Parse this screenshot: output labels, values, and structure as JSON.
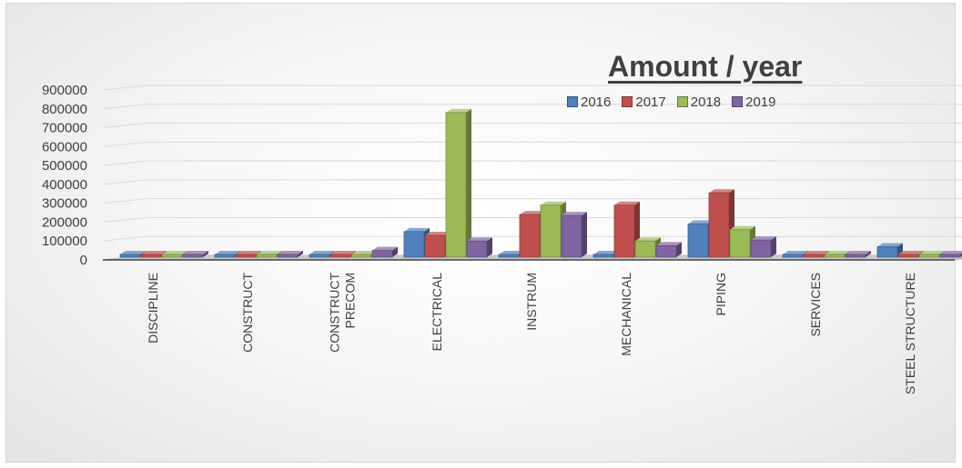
{
  "chart_data": {
    "type": "bar",
    "title": "Amount / year",
    "categories": [
      "DISCIPLINE",
      "CONSTRUCT",
      "CONSTRUCT PRECOM",
      "ELECTRICAL",
      "INSTRUM",
      "MECHANICAL",
      "PIPING",
      "SERVICES",
      "STEEL STRUCTURE"
    ],
    "category_lines": [
      [
        "DISCIPLINE"
      ],
      [
        "CONSTRUCT"
      ],
      [
        "CONSTRUCT",
        "PRECOM"
      ],
      [
        "ELECTRICAL"
      ],
      [
        "INSTRUM"
      ],
      [
        "MECHANICAL"
      ],
      [
        "PIPING"
      ],
      [
        "SERVICES"
      ],
      [
        "STEEL STRUCTURE"
      ]
    ],
    "series": [
      {
        "name": "2016",
        "color": "#4f81bd",
        "values": [
          0,
          0,
          0,
          150000,
          10000,
          0,
          190000,
          0,
          70000
        ]
      },
      {
        "name": "2017",
        "color": "#c0504d",
        "values": [
          0,
          0,
          0,
          130000,
          240000,
          290000,
          355000,
          0,
          0
        ]
      },
      {
        "name": "2018",
        "color": "#9bbb59",
        "values": [
          0,
          0,
          0,
          780000,
          290000,
          100000,
          160000,
          0,
          0
        ]
      },
      {
        "name": "2019",
        "color": "#8064a2",
        "values": [
          0,
          0,
          50000,
          100000,
          235000,
          75000,
          105000,
          0,
          0
        ]
      }
    ],
    "y_ticks": [
      "0",
      "100000",
      "200000",
      "300000",
      "400000",
      "500000",
      "600000",
      "700000",
      "800000",
      "900000"
    ],
    "ylim": [
      0,
      900000
    ],
    "legend_position": "top-right",
    "grid": true
  }
}
